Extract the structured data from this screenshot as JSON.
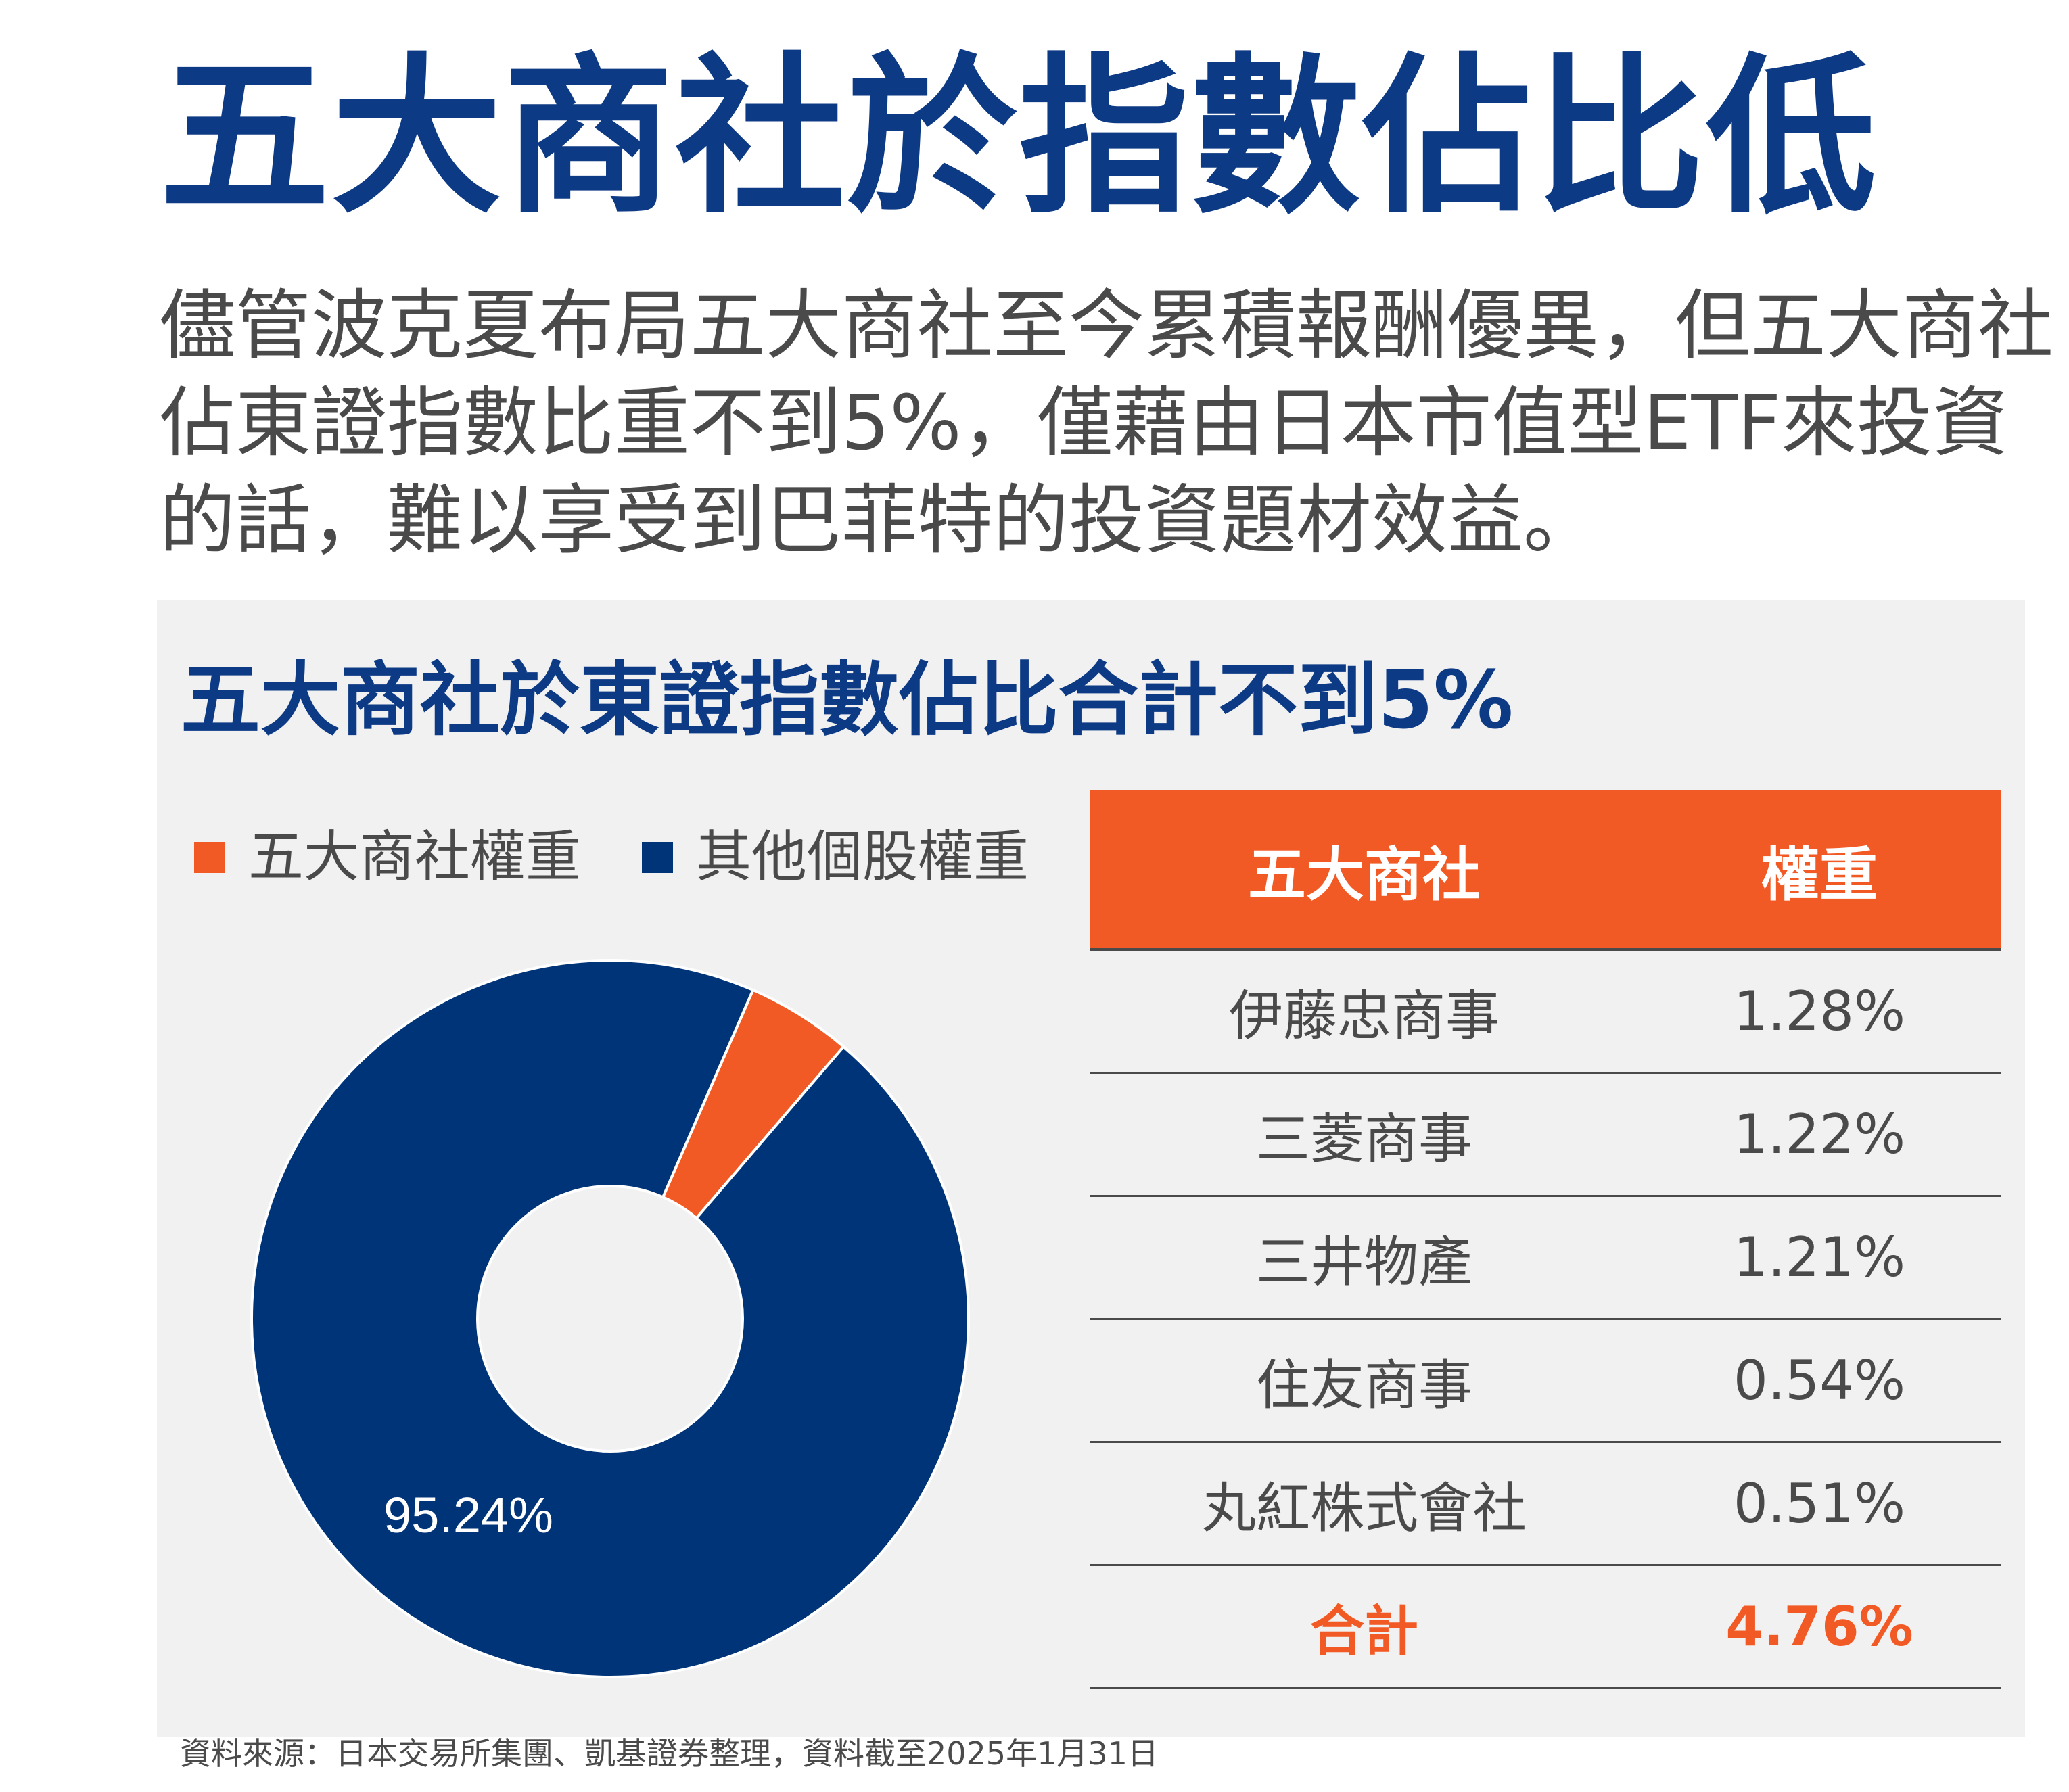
{
  "title": "五大商社於指數佔比低",
  "intro": "儘管波克夏布局五大商社至今累積報酬優異，但五大商社佔東證指數比重不到5%，僅藉由日本市值型ETF來投資的話，難以享受到巴菲特的投資題材效益。",
  "chart_data": {
    "type": "pie",
    "title": "五大商社於東證指數佔比合計不到5%",
    "donut": true,
    "legend_position": "top-left",
    "series": [
      {
        "name": "五大商社權重",
        "value": 4.76,
        "color": "#f15a24"
      },
      {
        "name": "其他個股權重",
        "value": 95.24,
        "color": "#003479"
      }
    ],
    "data_labels": [
      {
        "series": "其他個股權重",
        "text": "95.24%"
      }
    ]
  },
  "table": {
    "headers": {
      "name": "五大商社",
      "weight": "權重"
    },
    "rows": [
      {
        "name": "伊藤忠商事",
        "weight": "1.28%"
      },
      {
        "name": "三菱商事",
        "weight": "1.22%"
      },
      {
        "name": "三井物產",
        "weight": "1.21%"
      },
      {
        "name": "住友商事",
        "weight": "0.54%"
      },
      {
        "name": "丸紅株式會社",
        "weight": "0.51%"
      }
    ],
    "total": {
      "name": "合計",
      "weight": "4.76%"
    }
  },
  "source": "資料來源：日本交易所集團、凱基證券整理，資料截至2025年1月31日",
  "colors": {
    "title_blue": "#0d3a84",
    "accent_orange": "#f15a24",
    "series_blue": "#003479",
    "panel_bg": "#f1f1f2",
    "text_gray": "#4a4a4a"
  }
}
